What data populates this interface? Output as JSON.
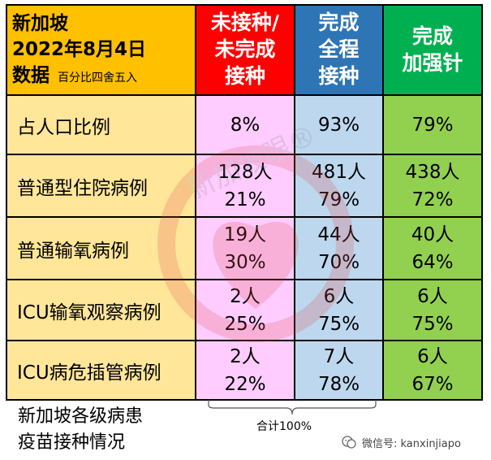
{
  "header": {
    "line1": "新加坡",
    "line2": "2022年8月4日",
    "line3": "数据",
    "note": "百分比四舍五入",
    "col_unvaccinated": [
      "未接种/",
      "未完成",
      "接种"
    ],
    "col_full": [
      "完成",
      "全程",
      "接种"
    ],
    "col_booster": [
      "完成",
      "加强针"
    ]
  },
  "rows": [
    {
      "label": "占人口比例",
      "v1": [
        "8%"
      ],
      "v2": [
        "93%"
      ],
      "v3": [
        "79%"
      ]
    },
    {
      "label": "普通型住院病例",
      "v1": [
        "128人",
        "21%"
      ],
      "v2": [
        "481人",
        "79%"
      ],
      "v3": [
        "438人",
        "72%"
      ]
    },
    {
      "label": "普通输氧病例",
      "v1": [
        "19人",
        "30%"
      ],
      "v2": [
        "44人",
        "70%"
      ],
      "v3": [
        "40人",
        "64%"
      ]
    },
    {
      "label": "ICU输氧观察病例",
      "v1": [
        "2人",
        "25%"
      ],
      "v2": [
        "6人",
        "75%"
      ],
      "v3": [
        "6人",
        "75%"
      ]
    },
    {
      "label": "ICU病危插管病例",
      "v1": [
        "2人",
        "22%"
      ],
      "v2": [
        "7人",
        "78%"
      ],
      "v3": [
        "6人",
        "67%"
      ]
    }
  ],
  "caption": [
    "新加坡各级病患",
    "疫苗接种情况"
  ],
  "total": "合计100%",
  "wechat": "微信号: kanxinjiapo",
  "watermark": "新加坡眼®",
  "colors": {
    "header_orange": "#ffc000",
    "label_yellow": "#ffe699",
    "red": "#ff0000",
    "blue": "#2e75b6",
    "green": "#00b050",
    "pink_cell": "#ffccff",
    "blue_cell": "#bdd7ee",
    "green_cell": "#92d050"
  }
}
